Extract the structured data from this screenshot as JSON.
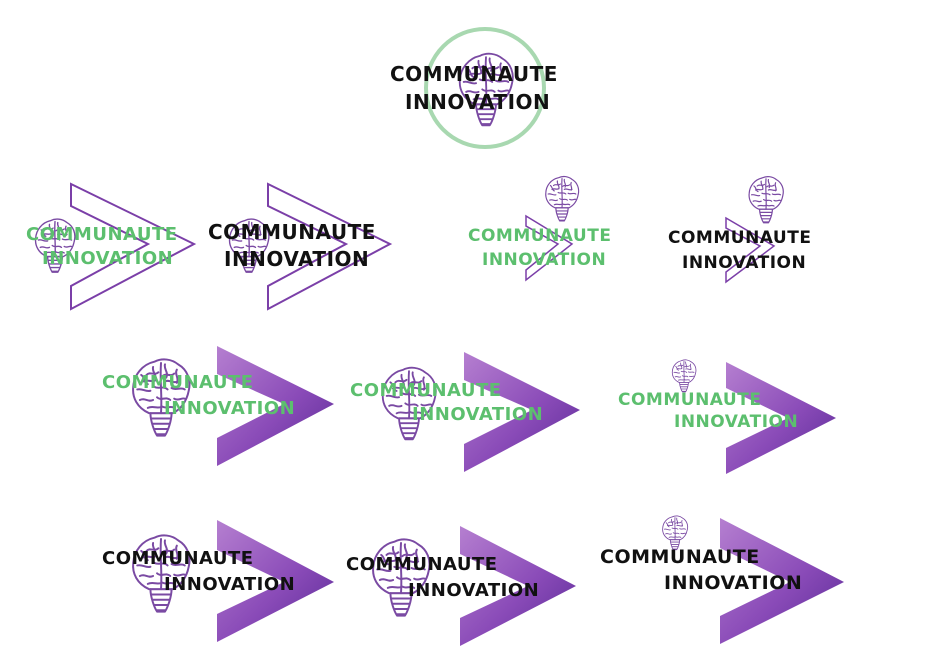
{
  "logos": [
    {
      "id": "logo-1",
      "line1": "COMMUNAUTE",
      "line2": "INNOVATION",
      "text_color": "#111111"
    },
    {
      "id": "logo-2",
      "line1": "COMMUNAUTE",
      "line2": "INNOVATION",
      "text_color": "#5cbf6e"
    },
    {
      "id": "logo-3",
      "line1": "COMMUNAUTE",
      "line2": "INNOVATION",
      "text_color": "#111111"
    },
    {
      "id": "logo-4",
      "line1": "COMMUNAUTE",
      "line2": "INNOVATION",
      "text_color": "#5cbf6e"
    },
    {
      "id": "logo-5",
      "line1": "COMMUNAUTE",
      "line2": "INNOVATION",
      "text_color": "#111111"
    },
    {
      "id": "logo-6",
      "line1": "COMMUNAUTE",
      "line2": "INNOVATION",
      "text_color": "#5cbf6e"
    },
    {
      "id": "logo-7",
      "line1": "COMMUNAUTE",
      "line2": "INNOVATION",
      "text_color": "#5cbf6e"
    },
    {
      "id": "logo-8",
      "line1": "COMMUNAUTE",
      "line2": "INNOVATION",
      "text_color": "#5cbf6e"
    },
    {
      "id": "logo-9",
      "line1": "COMMUNAUTE",
      "line2": "INNOVATION",
      "text_color": "#111111"
    },
    {
      "id": "logo-10",
      "line1": "COMMUNAUTE",
      "line2": "INNOVATION",
      "text_color": "#111111"
    },
    {
      "id": "logo-11",
      "line1": "COMMUNAUTE",
      "line2": "INNOVATION",
      "text_color": "#111111"
    }
  ],
  "colors": {
    "brand_purple": "#7b3fa8",
    "brain_outline": "#7a4aa3",
    "circle_green": "#a8d8b0",
    "text_green": "#5cbf6e",
    "text_black": "#111111"
  },
  "icons": [
    "brain-bulb-icon",
    "chevron-outline-icon",
    "chevron-gradient-icon",
    "circle-ring-icon"
  ]
}
